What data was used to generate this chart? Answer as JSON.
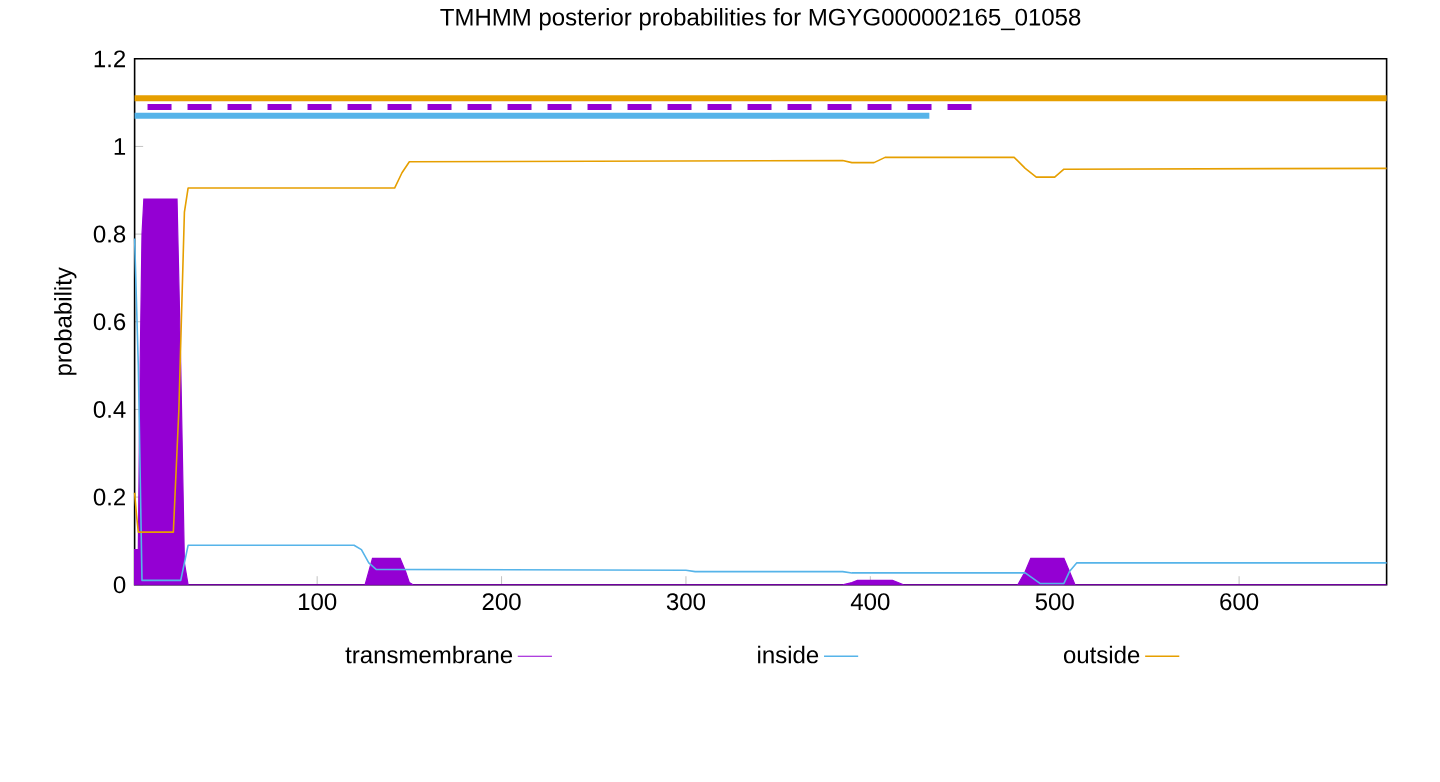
{
  "chart_data": {
    "type": "line",
    "title": "TMHMM posterior probabilities for MGYG000002165_01058",
    "ylabel": "probability",
    "xlim": [
      1,
      680
    ],
    "ylim": [
      0,
      1.2
    ],
    "xticks": [
      100,
      200,
      300,
      400,
      500,
      600
    ],
    "yticks": [
      0,
      0.2,
      0.4,
      0.6,
      0.8,
      1,
      1.2
    ],
    "legend": "bottom",
    "series": [
      {
        "name": "transmembrane",
        "type": "area",
        "color": "#9400d3",
        "x": [
          1,
          3,
          4,
          5,
          6,
          24,
          26,
          28,
          30,
          120,
          126,
          128,
          130,
          145,
          148,
          150,
          152,
          385,
          390,
          393,
          396,
          412,
          415,
          418,
          480,
          484,
          487,
          505,
          508,
          511,
          680
        ],
        "values": [
          0.08,
          0.08,
          0.5,
          0.8,
          0.88,
          0.88,
          0.5,
          0.05,
          0,
          0,
          0,
          0.03,
          0.06,
          0.06,
          0.03,
          0.005,
          0,
          0,
          0.005,
          0.01,
          0.01,
          0.01,
          0.005,
          0,
          0,
          0.03,
          0.06,
          0.06,
          0.03,
          0,
          0
        ]
      },
      {
        "name": "inside",
        "color": "#56b4e9",
        "x": [
          1,
          3,
          5,
          26,
          28,
          30,
          120,
          124,
          128,
          132,
          300,
          305,
          385,
          390,
          484,
          488,
          492,
          505,
          508,
          512,
          680
        ],
        "values": [
          0.79,
          0.5,
          0.01,
          0.01,
          0.05,
          0.09,
          0.09,
          0.08,
          0.05,
          0.035,
          0.033,
          0.03,
          0.03,
          0.027,
          0.027,
          0.015,
          0.003,
          0.003,
          0.03,
          0.05,
          0.05
        ]
      },
      {
        "name": "outside",
        "color": "#e69f00",
        "x": [
          1,
          2,
          3,
          22,
          25,
          28,
          30,
          142,
          146,
          150,
          385,
          390,
          402,
          408,
          478,
          484,
          490,
          500,
          505,
          680
        ],
        "values": [
          0.21,
          0.16,
          0.12,
          0.12,
          0.4,
          0.85,
          0.905,
          0.905,
          0.94,
          0.965,
          0.968,
          0.963,
          0.963,
          0.975,
          0.975,
          0.95,
          0.93,
          0.93,
          0.948,
          0.95
        ]
      },
      {
        "color": "#e69f00",
        "x": [
          1,
          680
        ],
        "values": [
          1.11,
          1.11
        ]
      },
      {
        "color": "#9400d3",
        "line_style": "dashed",
        "x": [
          8,
          456
        ],
        "values": [
          1.09,
          1.09
        ]
      },
      {
        "color": "#56b4e9",
        "x": [
          1,
          432
        ],
        "values": [
          1.07,
          1.07
        ]
      }
    ]
  }
}
